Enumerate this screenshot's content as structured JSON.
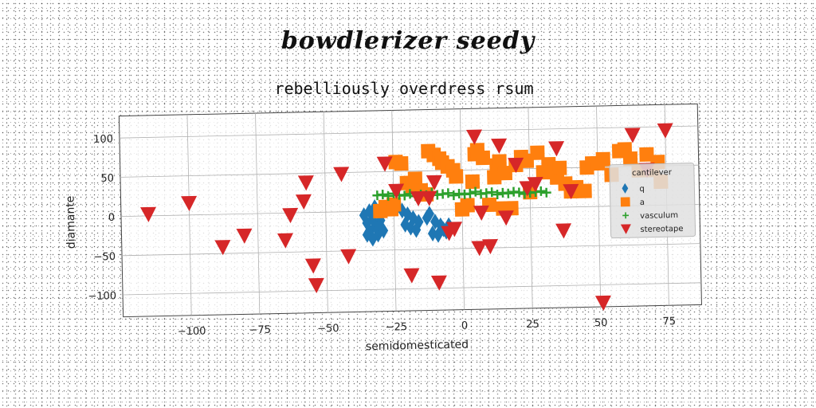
{
  "figure_title": "bowdlerizer seedy",
  "chart_data": {
    "type": "scatter",
    "title": "rebelliously overdress rsum",
    "xlabel": "semidomesticated",
    "ylabel": "diamante",
    "xlim": [
      -125,
      87
    ],
    "ylim": [
      -128,
      128
    ],
    "xticks": [
      -100,
      -75,
      -50,
      -25,
      0,
      25,
      50,
      75
    ],
    "yticks": [
      -100,
      -50,
      0,
      50,
      100
    ],
    "xtick_labels": [
      "−100",
      "−75",
      "−50",
      "−25",
      "0",
      "25",
      "50",
      "75"
    ],
    "ytick_labels": [
      "−100",
      "−50",
      "0",
      "50",
      "100"
    ],
    "grid": true,
    "legend": {
      "title": "cantilever",
      "position": "center-right"
    },
    "series": [
      {
        "name": "q",
        "color": "#1f77b4",
        "marker": "diamond",
        "x": [
          -36,
          -35,
          -34,
          -33,
          -32,
          -31,
          -30,
          -35,
          -33,
          -31,
          -29,
          -34,
          -32,
          -30,
          -22,
          -20,
          -18,
          -16,
          -21,
          -19,
          -17,
          -12,
          -10,
          -8,
          -6,
          -11,
          -9,
          -7,
          -5,
          -13
        ],
        "y": [
          -5,
          -15,
          -25,
          -10,
          -20,
          -30,
          -12,
          -30,
          -35,
          -22,
          -25,
          0,
          5,
          -3,
          0,
          -5,
          -10,
          -15,
          -18,
          -22,
          -25,
          -5,
          -15,
          -20,
          -28,
          -30,
          -32,
          -25,
          -20,
          -10
        ]
      },
      {
        "name": "a",
        "color": "#ff7f0e",
        "marker": "square",
        "x": [
          -30,
          -28,
          -26,
          -25,
          -24,
          -22,
          -20,
          -18,
          -17,
          -15,
          -13,
          -12,
          -10,
          -8,
          -7,
          -5,
          -3,
          -2,
          0,
          2,
          4,
          5,
          6,
          8,
          10,
          12,
          13,
          14,
          15,
          16,
          18,
          20,
          22,
          24,
          25,
          28,
          30,
          32,
          34,
          35,
          36,
          38,
          40,
          42,
          45,
          46,
          48,
          50,
          52,
          55,
          58,
          60,
          62,
          65,
          68,
          70,
          72,
          73
        ],
        "y": [
          0,
          5,
          2,
          8,
          62,
          60,
          35,
          30,
          40,
          25,
          20,
          75,
          70,
          65,
          60,
          55,
          50,
          42,
          0,
          5,
          35,
          70,
          75,
          65,
          5,
          40,
          55,
          60,
          0,
          45,
          0,
          55,
          65,
          60,
          20,
          70,
          45,
          55,
          45,
          38,
          50,
          30,
          20,
          25,
          20,
          50,
          55,
          55,
          60,
          40,
          70,
          72,
          60,
          45,
          65,
          45,
          55,
          30
        ]
      },
      {
        "name": "vasculum",
        "color": "#2ca02c",
        "marker": "plus",
        "x": [
          -31,
          -29,
          -27,
          -25,
          -23,
          -21,
          -19,
          -17,
          -15,
          -13,
          -11,
          -9,
          -7,
          -5,
          -3,
          -1,
          1,
          3,
          5,
          7,
          9,
          11,
          13,
          15,
          17,
          19,
          21,
          23,
          25,
          27,
          29,
          31
        ],
        "y": [
          20,
          21,
          19,
          22,
          20,
          19,
          21,
          18,
          20,
          19,
          22,
          19,
          20,
          21,
          18,
          20,
          19,
          20,
          22,
          19,
          20,
          21,
          18,
          20,
          19,
          21,
          20,
          18,
          19,
          20,
          21,
          19
        ]
      },
      {
        "name": "stereotape",
        "color": "#d62728",
        "marker": "triangle-down",
        "x": [
          -115,
          -100,
          -88,
          -80,
          -63,
          -65,
          -57,
          -58,
          -55,
          -54,
          -44,
          -42,
          -28,
          -24,
          -19,
          -16,
          -12,
          -10,
          -9,
          -5,
          -3,
          5,
          7,
          6,
          10,
          14,
          16,
          20,
          24,
          27,
          35,
          37,
          40,
          51,
          63,
          68,
          75
        ],
        "y": [
          2,
          15,
          -42,
          -28,
          -3,
          -35,
          38,
          14,
          -68,
          -93,
          48,
          -57,
          60,
          25,
          -83,
          15,
          15,
          35,
          -93,
          -30,
          -25,
          92,
          -5,
          -50,
          -48,
          80,
          -12,
          55,
          25,
          30,
          75,
          -30,
          20,
          -123,
          90,
          45,
          95
        ]
      }
    ]
  }
}
